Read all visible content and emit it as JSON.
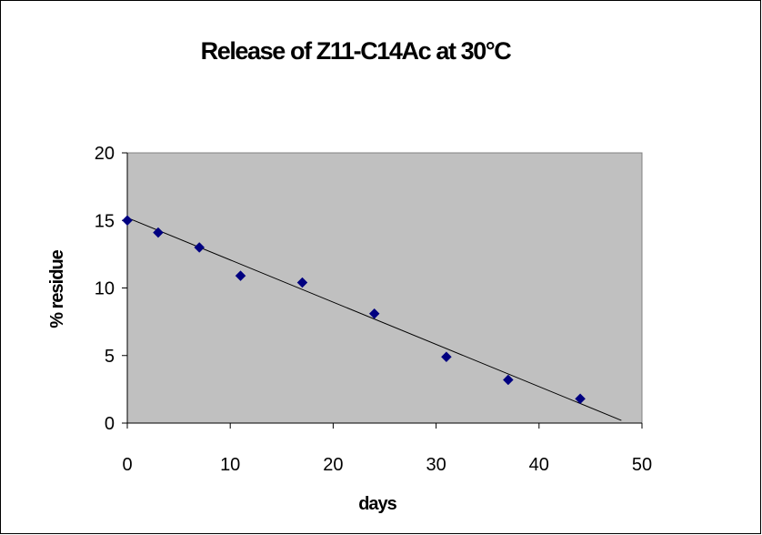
{
  "chart_data": {
    "type": "scatter",
    "title": "Release of Z11-C14Ac at 30°C",
    "xlabel": "days",
    "ylabel": "% residue",
    "xlim": [
      0,
      50
    ],
    "ylim": [
      0,
      20
    ],
    "xticks": [
      0,
      10,
      20,
      30,
      40,
      50
    ],
    "yticks": [
      0,
      5,
      10,
      15,
      20
    ],
    "grid": false,
    "legend": "none",
    "plot_background": "#c0c0c0",
    "marker_color": "#000080",
    "marker": "diamond",
    "series": [
      {
        "x": [
          0,
          3,
          7,
          11,
          17,
          24,
          31,
          37,
          44
        ],
        "y": [
          15.0,
          14.1,
          13.0,
          10.9,
          10.4,
          8.1,
          4.9,
          3.2,
          1.8
        ]
      }
    ],
    "trendline": {
      "type": "linear",
      "x": [
        0,
        48
      ],
      "y": [
        15.2,
        0.2
      ],
      "color": "#000000"
    }
  }
}
